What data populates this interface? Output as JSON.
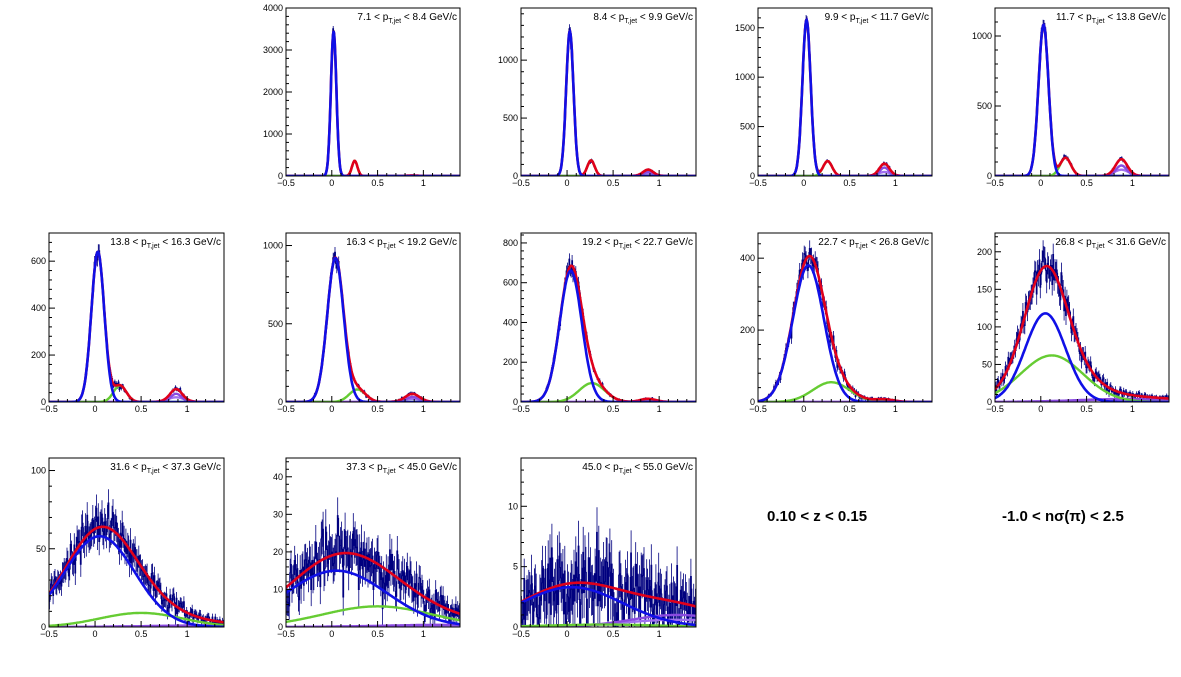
{
  "cuts": {
    "z_label": "0.10 < z < 0.15",
    "nsigma_label": "-1.0 < nσ(π) < 2.5"
  },
  "colors": {
    "data": "#00007f",
    "total": "#e0001b",
    "pion": "#1010e6",
    "kaon": "#66cc33",
    "proton": "#8a4ae0",
    "electron": "#a070f0"
  },
  "chart_data": [
    {
      "type": "line",
      "title": "7.1 < p_T,jet < 8.4 GeV/c",
      "xlim": [
        -0.5,
        1.4
      ],
      "ylim": [
        0,
        4000
      ],
      "xticks": [
        -0.5,
        0,
        0.5,
        1
      ],
      "yticks": [
        0,
        1000,
        2000,
        3000,
        4000
      ],
      "series": [
        {
          "role": "data",
          "kind": "histogram",
          "components": [
            "pion",
            "kaon",
            "proton",
            "electron"
          ]
        },
        {
          "role": "total",
          "kind": "fit"
        },
        {
          "role": "pion",
          "kind": "gaussian",
          "mean": 0.02,
          "sigma": 0.03,
          "amplitude": 3450
        },
        {
          "role": "kaon",
          "kind": "gaussian",
          "mean": 0.25,
          "sigma": 0.03,
          "amplitude": 360
        },
        {
          "role": "proton",
          "kind": "gaussian",
          "mean": 0.88,
          "sigma": 0.05,
          "amplitude": 8
        },
        {
          "role": "electron",
          "kind": "gaussian",
          "mean": 0.88,
          "sigma": 0.07,
          "amplitude": 6
        }
      ]
    },
    {
      "type": "line",
      "title": "8.4 < p_T,jet < 9.9 GeV/c",
      "xlim": [
        -0.5,
        1.4
      ],
      "ylim": [
        0,
        1450
      ],
      "xticks": [
        -0.5,
        0,
        0.5,
        1
      ],
      "yticks": [
        0,
        500,
        1000
      ],
      "series": [
        {
          "role": "data",
          "kind": "histogram",
          "components": [
            "pion",
            "kaon",
            "proton",
            "electron"
          ]
        },
        {
          "role": "total",
          "kind": "fit"
        },
        {
          "role": "pion",
          "kind": "gaussian",
          "mean": 0.03,
          "sigma": 0.04,
          "amplitude": 1250
        },
        {
          "role": "kaon",
          "kind": "gaussian",
          "mean": 0.26,
          "sigma": 0.04,
          "amplitude": 135
        },
        {
          "role": "proton",
          "kind": "gaussian",
          "mean": 0.88,
          "sigma": 0.05,
          "amplitude": 35
        },
        {
          "role": "electron",
          "kind": "gaussian",
          "mean": 0.88,
          "sigma": 0.07,
          "amplitude": 20
        }
      ]
    },
    {
      "type": "line",
      "title": "9.9 < p_T,jet < 11.7 GeV/c",
      "xlim": [
        -0.5,
        1.4
      ],
      "ylim": [
        0,
        1700
      ],
      "xticks": [
        -0.5,
        0,
        0.5,
        1
      ],
      "yticks": [
        0,
        500,
        1000,
        1500
      ],
      "series": [
        {
          "role": "data",
          "kind": "histogram",
          "components": [
            "pion",
            "kaon",
            "proton",
            "electron"
          ]
        },
        {
          "role": "total",
          "kind": "fit"
        },
        {
          "role": "pion",
          "kind": "gaussian",
          "mean": 0.03,
          "sigma": 0.045,
          "amplitude": 1580
        },
        {
          "role": "kaon",
          "kind": "gaussian",
          "mean": 0.26,
          "sigma": 0.05,
          "amplitude": 150
        },
        {
          "role": "proton",
          "kind": "gaussian",
          "mean": 0.88,
          "sigma": 0.05,
          "amplitude": 85
        },
        {
          "role": "electron",
          "kind": "gaussian",
          "mean": 0.88,
          "sigma": 0.07,
          "amplitude": 40
        }
      ]
    },
    {
      "type": "line",
      "title": "11.7 < p_T,jet < 13.8 GeV/c",
      "xlim": [
        -0.5,
        1.4
      ],
      "ylim": [
        0,
        1200
      ],
      "xticks": [
        -0.5,
        0,
        0.5,
        1
      ],
      "yticks": [
        0,
        500,
        1000
      ],
      "series": [
        {
          "role": "data",
          "kind": "histogram",
          "components": [
            "pion",
            "kaon",
            "proton",
            "electron"
          ]
        },
        {
          "role": "total",
          "kind": "fit"
        },
        {
          "role": "pion",
          "kind": "gaussian",
          "mean": 0.03,
          "sigma": 0.055,
          "amplitude": 1080
        },
        {
          "role": "kaon",
          "kind": "gaussian",
          "mean": 0.27,
          "sigma": 0.06,
          "amplitude": 130
        },
        {
          "role": "proton",
          "kind": "gaussian",
          "mean": 0.88,
          "sigma": 0.06,
          "amplitude": 75
        },
        {
          "role": "electron",
          "kind": "gaussian",
          "mean": 0.88,
          "sigma": 0.08,
          "amplitude": 45
        }
      ]
    },
    {
      "type": "line",
      "title": "13.8 < p_T,jet < 16.3 GeV/c",
      "xlim": [
        -0.5,
        1.4
      ],
      "ylim": [
        0,
        720
      ],
      "xticks": [
        -0.5,
        0,
        0.5,
        1
      ],
      "yticks": [
        0,
        200,
        400,
        600
      ],
      "series": [
        {
          "role": "data",
          "kind": "histogram",
          "components": [
            "pion",
            "kaon",
            "proton",
            "electron"
          ]
        },
        {
          "role": "total",
          "kind": "fit"
        },
        {
          "role": "pion",
          "kind": "gaussian",
          "mean": 0.03,
          "sigma": 0.07,
          "amplitude": 640
        },
        {
          "role": "kaon",
          "kind": "gaussian",
          "mean": 0.27,
          "sigma": 0.07,
          "amplitude": 70
        },
        {
          "role": "proton",
          "kind": "gaussian",
          "mean": 0.88,
          "sigma": 0.06,
          "amplitude": 35
        },
        {
          "role": "electron",
          "kind": "gaussian",
          "mean": 0.88,
          "sigma": 0.09,
          "amplitude": 20
        }
      ]
    },
    {
      "type": "line",
      "title": "16.3 < p_T,jet < 19.2 GeV/c",
      "xlim": [
        -0.5,
        1.4
      ],
      "ylim": [
        0,
        1080
      ],
      "xticks": [
        -0.5,
        0,
        0.5,
        1
      ],
      "yticks": [
        0,
        500,
        1000
      ],
      "series": [
        {
          "role": "data",
          "kind": "histogram",
          "components": [
            "pion",
            "kaon",
            "proton",
            "electron"
          ]
        },
        {
          "role": "total",
          "kind": "fit"
        },
        {
          "role": "pion",
          "kind": "gaussian",
          "mean": 0.04,
          "sigma": 0.09,
          "amplitude": 920
        },
        {
          "role": "kaon",
          "kind": "gaussian",
          "mean": 0.28,
          "sigma": 0.09,
          "amplitude": 80
        },
        {
          "role": "proton",
          "kind": "gaussian",
          "mean": 0.88,
          "sigma": 0.07,
          "amplitude": 32
        },
        {
          "role": "electron",
          "kind": "gaussian",
          "mean": 0.88,
          "sigma": 0.1,
          "amplitude": 20
        }
      ]
    },
    {
      "type": "line",
      "title": "19.2 < p_T,jet < 22.7 GeV/c",
      "xlim": [
        -0.5,
        1.4
      ],
      "ylim": [
        0,
        850
      ],
      "xticks": [
        -0.5,
        0,
        0.5,
        1
      ],
      "yticks": [
        0,
        200,
        400,
        600,
        800
      ],
      "series": [
        {
          "role": "data",
          "kind": "histogram",
          "components": [
            "pion",
            "kaon",
            "proton",
            "electron"
          ]
        },
        {
          "role": "total",
          "kind": "fit"
        },
        {
          "role": "pion",
          "kind": "gaussian",
          "mean": 0.04,
          "sigma": 0.12,
          "amplitude": 660
        },
        {
          "role": "kaon",
          "kind": "gaussian",
          "mean": 0.27,
          "sigma": 0.14,
          "amplitude": 95
        },
        {
          "role": "proton",
          "kind": "gaussian",
          "mean": 0.88,
          "sigma": 0.08,
          "amplitude": 10
        },
        {
          "role": "electron",
          "kind": "gaussian",
          "mean": 0.88,
          "sigma": 0.1,
          "amplitude": 6
        }
      ]
    },
    {
      "type": "line",
      "title": "22.7 < p_T,jet < 26.8 GeV/c",
      "xlim": [
        -0.5,
        1.4
      ],
      "ylim": [
        0,
        470
      ],
      "xticks": [
        -0.5,
        0,
        0.5,
        1
      ],
      "yticks": [
        0,
        200,
        400
      ],
      "series": [
        {
          "role": "data",
          "kind": "histogram",
          "components": [
            "pion",
            "kaon",
            "proton",
            "electron"
          ]
        },
        {
          "role": "total",
          "kind": "fit"
        },
        {
          "role": "pion",
          "kind": "gaussian",
          "mean": 0.05,
          "sigma": 0.17,
          "amplitude": 380
        },
        {
          "role": "kaon",
          "kind": "gaussian",
          "mean": 0.3,
          "sigma": 0.2,
          "amplitude": 55
        },
        {
          "role": "proton",
          "kind": "gaussian",
          "mean": 0.88,
          "sigma": 0.1,
          "amplitude": 4
        },
        {
          "role": "electron",
          "kind": "gaussian",
          "mean": 0.88,
          "sigma": 0.12,
          "amplitude": 3
        }
      ]
    },
    {
      "type": "line",
      "title": "26.8 < p_T,jet < 31.6 GeV/c",
      "xlim": [
        -0.5,
        1.4
      ],
      "ylim": [
        0,
        225
      ],
      "xticks": [
        -0.5,
        0,
        0.5,
        1
      ],
      "yticks": [
        0,
        50,
        100,
        150,
        200
      ],
      "series": [
        {
          "role": "data",
          "kind": "histogram",
          "components": [
            "pion",
            "kaon",
            "proton",
            "electron"
          ]
        },
        {
          "role": "total",
          "kind": "fit"
        },
        {
          "role": "pion",
          "kind": "gaussian",
          "mean": 0.05,
          "sigma": 0.22,
          "amplitude": 118
        },
        {
          "role": "kaon",
          "kind": "gaussian",
          "mean": 0.12,
          "sigma": 0.34,
          "amplitude": 62
        },
        {
          "role": "proton",
          "kind": "gaussian",
          "mean": 0.9,
          "sigma": 0.5,
          "amplitude": 4
        },
        {
          "role": "electron",
          "kind": "gaussian",
          "mean": 0.9,
          "sigma": 0.6,
          "amplitude": 3
        }
      ]
    },
    {
      "type": "line",
      "title": "31.6 < p_T,jet < 37.3 GeV/c",
      "xlim": [
        -0.5,
        1.4
      ],
      "ylim": [
        0,
        108
      ],
      "xticks": [
        -0.5,
        0,
        0.5,
        1
      ],
      "yticks": [
        0,
        50,
        100
      ],
      "series": [
        {
          "role": "data",
          "kind": "histogram",
          "components": [
            "pion",
            "kaon",
            "proton",
            "electron"
          ]
        },
        {
          "role": "total",
          "kind": "fit"
        },
        {
          "role": "pion",
          "kind": "gaussian",
          "mean": 0.05,
          "sigma": 0.38,
          "amplitude": 58
        },
        {
          "role": "kaon",
          "kind": "gaussian",
          "mean": 0.5,
          "sigma": 0.45,
          "amplitude": 9
        },
        {
          "role": "proton",
          "kind": "gaussian",
          "mean": 1.2,
          "sigma": 0.6,
          "amplitude": 1
        },
        {
          "role": "electron",
          "kind": "gaussian",
          "mean": 1.2,
          "sigma": 0.7,
          "amplitude": 0.8
        }
      ]
    },
    {
      "type": "line",
      "title": "37.3 < p_T,jet < 45.0 GeV/c",
      "xlim": [
        -0.5,
        1.4
      ],
      "ylim": [
        0,
        45
      ],
      "xticks": [
        -0.5,
        0,
        0.5,
        1
      ],
      "yticks": [
        0,
        10,
        20,
        30,
        40
      ],
      "series": [
        {
          "role": "data",
          "kind": "histogram",
          "components": [
            "pion",
            "kaon",
            "proton",
            "electron"
          ]
        },
        {
          "role": "total",
          "kind": "fit"
        },
        {
          "role": "pion",
          "kind": "gaussian",
          "mean": 0.05,
          "sigma": 0.55,
          "amplitude": 15
        },
        {
          "role": "kaon",
          "kind": "gaussian",
          "mean": 0.5,
          "sigma": 0.6,
          "amplitude": 5.5
        },
        {
          "role": "proton",
          "kind": "gaussian",
          "mean": 1.3,
          "sigma": 0.7,
          "amplitude": 0.6
        },
        {
          "role": "electron",
          "kind": "gaussian",
          "mean": 1.3,
          "sigma": 0.8,
          "amplitude": 0.4
        }
      ]
    },
    {
      "type": "line",
      "title": "45.0 < p_T,jet < 55.0 GeV/c",
      "xlim": [
        -0.5,
        1.4
      ],
      "ylim": [
        0,
        14
      ],
      "xticks": [
        -0.5,
        0,
        0.5,
        1
      ],
      "yticks": [
        0,
        5,
        10
      ],
      "series": [
        {
          "role": "data",
          "kind": "histogram",
          "components": [
            "pion",
            "kaon",
            "proton",
            "electron"
          ]
        },
        {
          "role": "total",
          "kind": "fit"
        },
        {
          "role": "pion",
          "kind": "gaussian",
          "mean": 0.05,
          "sigma": 0.55,
          "amplitude": 3.3
        },
        {
          "role": "kaon",
          "kind": "gaussian",
          "mean": 0.4,
          "sigma": 0.6,
          "amplitude": 0.2
        },
        {
          "role": "proton",
          "kind": "gaussian",
          "mean": 1.2,
          "sigma": 0.5,
          "amplitude": 1.0
        },
        {
          "role": "electron",
          "kind": "gaussian",
          "mean": 1.2,
          "sigma": 0.6,
          "amplitude": 0.6
        }
      ]
    }
  ]
}
